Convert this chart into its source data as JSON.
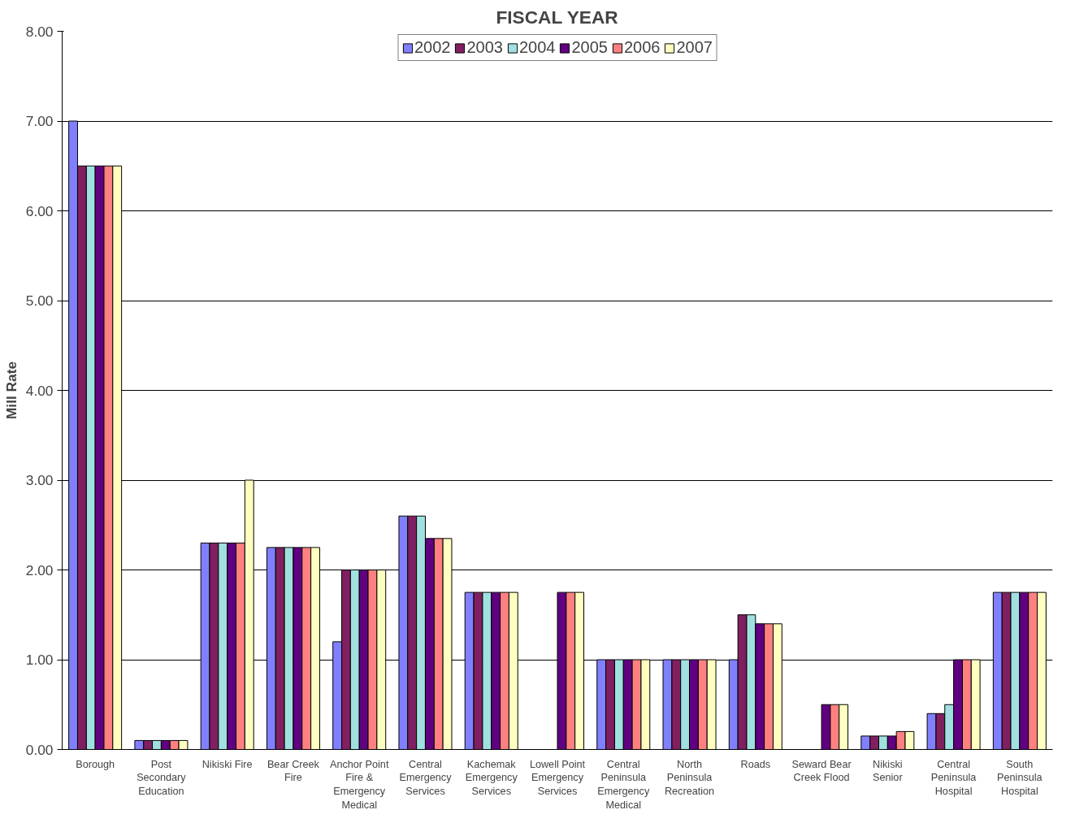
{
  "chart_data": {
    "type": "bar",
    "title": "FISCAL YEAR",
    "ylabel": "Mill Rate",
    "categories": [
      "Borough",
      "Post Secondary Education",
      "Nikiski Fire",
      "Bear Creek Fire",
      "Anchor Point Fire & Emergency Medical",
      "Central Emergency Services",
      "Kachemak Emergency Services",
      "Lowell Point Emergency Services",
      "Central Peninsula Emergency Medical",
      "North Peninsula Recreation",
      "Roads",
      "Seward Bear Creek Flood",
      "Nikiski Senior",
      "Central Peninsula Hospital",
      "South Peninsula Hospital"
    ],
    "series": [
      {
        "name": "2002",
        "color": "#8080ff",
        "values": [
          7.0,
          0.1,
          2.3,
          2.25,
          1.2,
          2.6,
          1.75,
          null,
          1.0,
          1.0,
          1.0,
          null,
          0.15,
          0.4,
          1.75
        ]
      },
      {
        "name": "2003",
        "color": "#802060",
        "values": [
          6.5,
          0.1,
          2.3,
          2.25,
          2.0,
          2.6,
          1.75,
          null,
          1.0,
          1.0,
          1.5,
          null,
          0.15,
          0.4,
          1.75
        ]
      },
      {
        "name": "2004",
        "color": "#a0e0e0",
        "values": [
          6.5,
          0.1,
          2.3,
          2.25,
          2.0,
          2.6,
          1.75,
          null,
          1.0,
          1.0,
          1.5,
          null,
          0.15,
          0.5,
          1.75
        ]
      },
      {
        "name": "2005",
        "color": "#600080",
        "values": [
          6.5,
          0.1,
          2.3,
          2.25,
          2.0,
          2.35,
          1.75,
          1.75,
          1.0,
          1.0,
          1.4,
          0.5,
          0.15,
          1.0,
          1.75
        ]
      },
      {
        "name": "2006",
        "color": "#ff8080",
        "values": [
          6.5,
          0.1,
          2.3,
          2.25,
          2.0,
          2.35,
          1.75,
          1.75,
          1.0,
          1.0,
          1.4,
          0.5,
          0.2,
          1.0,
          1.75
        ]
      },
      {
        "name": "2007",
        "color": "#ffffc0",
        "values": [
          6.5,
          0.1,
          3.0,
          2.25,
          2.0,
          2.35,
          1.75,
          1.75,
          1.0,
          1.0,
          1.4,
          0.5,
          0.2,
          1.0,
          1.75
        ]
      }
    ],
    "ylim": [
      0,
      8
    ],
    "yticks": [
      {
        "value": 0,
        "label": "0.00"
      },
      {
        "value": 1,
        "label": "1.00"
      },
      {
        "value": 2,
        "label": "2.00"
      },
      {
        "value": 3,
        "label": "3.00"
      },
      {
        "value": 4,
        "label": "4.00"
      },
      {
        "value": 5,
        "label": "5.00"
      },
      {
        "value": 6,
        "label": "6.00"
      },
      {
        "value": 7,
        "label": "7.00"
      },
      {
        "value": 8,
        "label": "8.00"
      }
    ],
    "grid": "y",
    "legend": "top"
  }
}
